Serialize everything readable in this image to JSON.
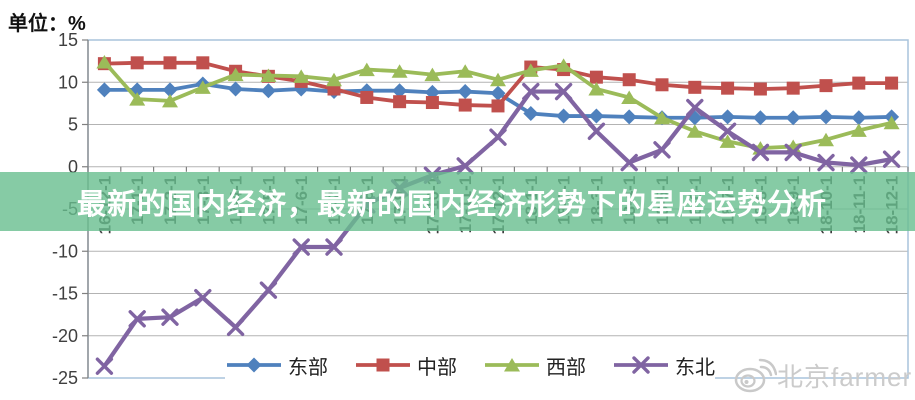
{
  "unit_label": "单位：%",
  "banner": {
    "text": "最新的国内经济，最新的国内经济形势下的星座运势分析",
    "bg_color": "#68be8e",
    "text_color": "#ffffff"
  },
  "watermark": {
    "icon": "weibo-eye-icon",
    "text": "北京farmer"
  },
  "chart_data": {
    "type": "line",
    "title": "",
    "xlabel": "",
    "ylabel": "单位：%",
    "ylim": [
      -25,
      15
    ],
    "yticks": [
      15,
      10,
      5,
      0,
      -5,
      -10,
      -15,
      -20,
      -25
    ],
    "grid": true,
    "legend_position": "bottom",
    "xlabel_rotation": 90,
    "categories": [
      "16-12-1",
      "17-1-1",
      "17-2-1",
      "17-3-1",
      "17-4-1",
      "17-5-1",
      "17-6-1",
      "17-7-1",
      "17-8-1",
      "17-9-1",
      "17-10-1",
      "17-11-1",
      "17-12-1",
      "18-1-1",
      "18-2-1",
      "18-3-1",
      "18-4-1",
      "18-5-1",
      "18-6-1",
      "18-7-1",
      "18-8-1",
      "18-9-1",
      "18-10-1",
      "18-11-1",
      "18-12-1"
    ],
    "series": [
      {
        "id": "east",
        "name": "东部",
        "color": "#4f81bd",
        "marker": "diamond",
        "values": [
          9.1,
          9.1,
          9.1,
          9.8,
          9.2,
          9.0,
          9.2,
          8.9,
          9.0,
          9.0,
          8.8,
          8.9,
          8.7,
          6.3,
          6.0,
          6.0,
          5.9,
          5.8,
          5.8,
          5.9,
          5.8,
          5.8,
          5.9,
          5.8,
          5.9
        ]
      },
      {
        "id": "central",
        "name": "中部",
        "color": "#c0504d",
        "marker": "square",
        "values": [
          12.2,
          12.3,
          12.3,
          12.3,
          11.3,
          10.7,
          10.1,
          9.2,
          8.2,
          7.7,
          7.6,
          7.3,
          7.2,
          11.8,
          11.5,
          10.6,
          10.3,
          9.7,
          9.4,
          9.3,
          9.2,
          9.3,
          9.6,
          9.9,
          9.9
        ]
      },
      {
        "id": "west",
        "name": "西部",
        "color": "#9bbb59",
        "marker": "triangle",
        "values": [
          12.4,
          8.0,
          7.8,
          9.4,
          10.9,
          10.8,
          10.7,
          10.3,
          11.5,
          11.3,
          10.9,
          11.3,
          10.3,
          11.4,
          12.0,
          9.2,
          8.2,
          5.8,
          4.2,
          3.0,
          2.2,
          2.4,
          3.2,
          4.3,
          5.2
        ]
      },
      {
        "id": "northeast",
        "name": "东北",
        "color": "#8064a2",
        "marker": "x",
        "values": [
          -23.6,
          -18.0,
          -17.8,
          -15.5,
          -19.0,
          -14.6,
          -9.5,
          -9.5,
          -4.5,
          -2.5,
          -1.0,
          0.1,
          3.5,
          8.9,
          8.9,
          4.2,
          0.5,
          2.0,
          7.0,
          4.2,
          1.7,
          1.7,
          0.5,
          0.2,
          0.9
        ]
      }
    ]
  }
}
